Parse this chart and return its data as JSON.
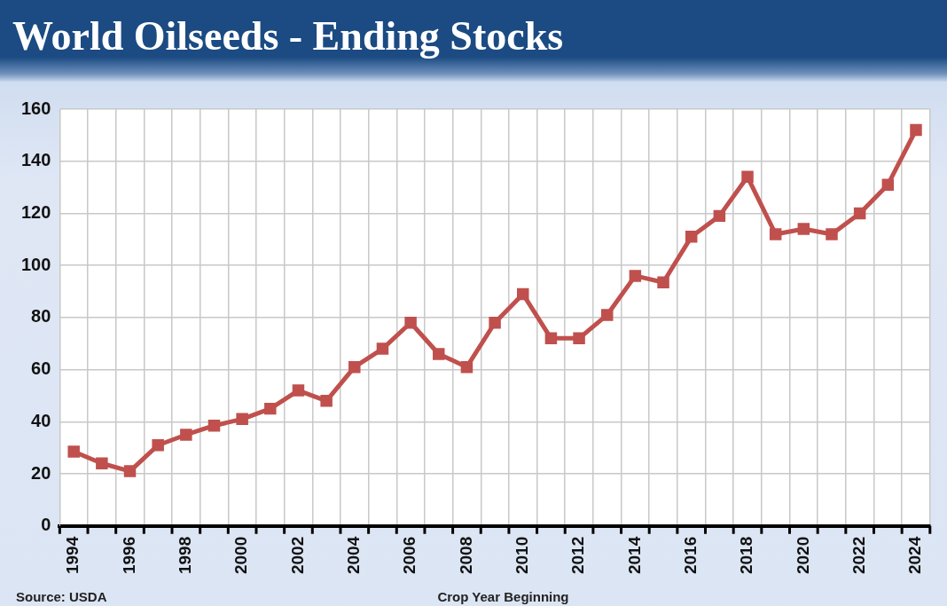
{
  "chart_data": {
    "type": "line",
    "title": "World Oilseeds - Ending Stocks",
    "xlabel": "Crop Year Beginning",
    "annotations": [
      "Source: USDA"
    ],
    "categories": [
      "1994",
      null,
      "1996",
      null,
      "1998",
      null,
      "2000",
      null,
      "2002",
      null,
      "2004",
      null,
      "2006",
      null,
      "2008",
      null,
      "2010",
      null,
      "2012",
      null,
      "2014",
      null,
      "2016",
      null,
      "2018",
      null,
      "2020",
      null,
      "2022",
      null,
      "2024"
    ],
    "series": [
      {
        "color": "#c0504d",
        "values": [
          28.5,
          24,
          21,
          31,
          35,
          38.5,
          41,
          45,
          52,
          48,
          61,
          68,
          78,
          66,
          61,
          78,
          89,
          72,
          72,
          81,
          96,
          93.5,
          111,
          119,
          134,
          112,
          114,
          112,
          120,
          131,
          152
        ]
      }
    ],
    "ylim": [
      0,
      160
    ],
    "yticks": [
      0,
      20,
      40,
      60,
      80,
      100,
      120,
      140,
      160
    ],
    "grid": true,
    "marker": "square",
    "line_style": "solid"
  }
}
